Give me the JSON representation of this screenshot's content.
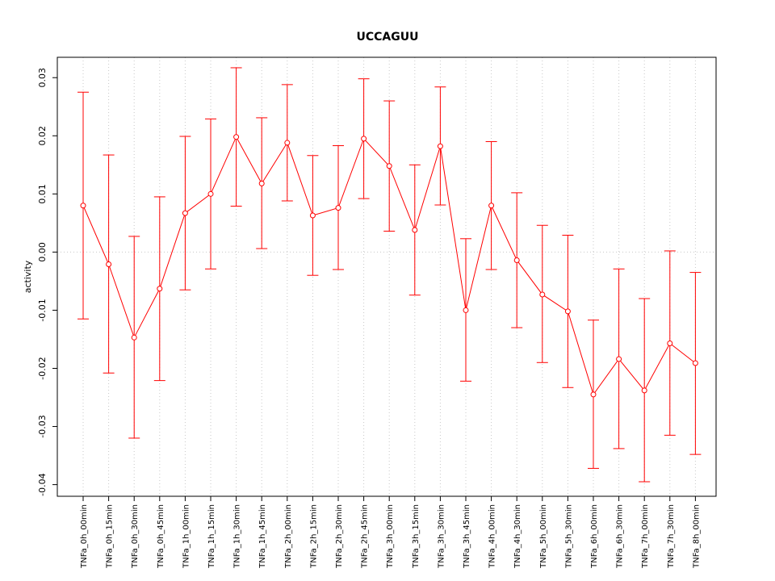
{
  "chart_data": {
    "type": "line",
    "title": "UCCAGUU",
    "xlabel": "",
    "ylabel": "activity",
    "ylim": [
      -0.042,
      0.0335
    ],
    "yticks": [
      -0.04,
      -0.03,
      -0.02,
      -0.01,
      0.0,
      0.01,
      0.02,
      0.03
    ],
    "ytick_labels": [
      "-0.04",
      "-0.03",
      "-0.02",
      "-0.01",
      "0.00",
      "0.01",
      "0.02",
      "0.03"
    ],
    "grid": true,
    "color": "#ff0000",
    "grid_color": "#c8c8c8",
    "categories": [
      "TNFa_0h_00min",
      "TNFa_0h_15min",
      "TNFa_0h_30min",
      "TNFa_0h_45min",
      "TNFa_1h_00min",
      "TNFa_1h_15min",
      "TNFa_1h_30min",
      "TNFa_1h_45min",
      "TNFa_2h_00min",
      "TNFa_2h_15min",
      "TNFa_2h_30min",
      "TNFa_2h_45min",
      "TNFa_3h_00min",
      "TNFa_3h_15min",
      "TNFa_3h_30min",
      "TNFa_3h_45min",
      "TNFa_4h_00min",
      "TNFa_4h_30min",
      "TNFa_5h_00min",
      "TNFa_5h_30min",
      "TNFa_6h_00min",
      "TNFa_6h_30min",
      "TNFa_7h_00min",
      "TNFa_7h_30min",
      "TNFa_8h_00min"
    ],
    "values": [
      0.008,
      -0.0021,
      -0.0147,
      -0.0063,
      0.0067,
      0.01,
      0.0198,
      0.0118,
      0.0188,
      0.0063,
      0.0076,
      0.0195,
      0.0148,
      0.0038,
      0.0182,
      -0.01,
      0.008,
      -0.0014,
      -0.0073,
      -0.0102,
      -0.0245,
      -0.0184,
      -0.0238,
      -0.0157,
      -0.0191
    ],
    "upper": [
      0.0275,
      0.0167,
      0.0027,
      0.0095,
      0.0199,
      0.0229,
      0.0317,
      0.0231,
      0.0288,
      0.0166,
      0.0183,
      0.0298,
      0.026,
      0.015,
      0.0284,
      0.0023,
      0.019,
      0.0102,
      0.0046,
      0.0029,
      -0.0117,
      -0.0029,
      -0.008,
      0.0002,
      -0.0035
    ],
    "lower": [
      -0.0115,
      -0.0208,
      -0.032,
      -0.0221,
      -0.0065,
      -0.0029,
      0.0079,
      0.0006,
      0.0088,
      -0.004,
      -0.003,
      0.0092,
      0.0036,
      -0.0074,
      0.0081,
      -0.0222,
      -0.003,
      -0.013,
      -0.019,
      -0.0233,
      -0.0372,
      -0.0338,
      -0.0395,
      -0.0315,
      -0.0348
    ]
  }
}
